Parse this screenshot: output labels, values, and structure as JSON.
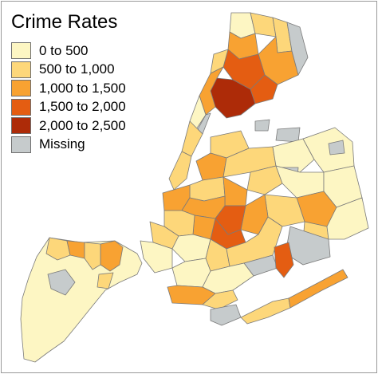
{
  "legend": {
    "title": "Crime Rates",
    "items": [
      {
        "label": "0 to 500",
        "color": "#fdf6c3"
      },
      {
        "label": "500 to 1,000",
        "color": "#fdd77a"
      },
      {
        "label": "1,000 to 1,500",
        "color": "#f8a232"
      },
      {
        "label": "1,500 to 2,000",
        "color": "#e45d12"
      },
      {
        "label": "2,000 to 2,500",
        "color": "#ad2b08"
      },
      {
        "label": "Missing",
        "color": "#c6cbcc"
      }
    ]
  },
  "map": {
    "boundary_color": "#7a7a7a",
    "regions": [
      {
        "name": "staten-island",
        "class_index": 0
      },
      {
        "name": "staten-island-north-shore",
        "class_index": 1
      },
      {
        "name": "staten-island-mariners-harbor",
        "class_index": 2
      },
      {
        "name": "staten-island-st-george",
        "class_index": 2
      },
      {
        "name": "staten-island-port-richmond",
        "class_index": 1
      },
      {
        "name": "manhattan-lower",
        "class_index": 1
      },
      {
        "name": "manhattan-midtown",
        "class_index": 1
      },
      {
        "name": "manhattan-upper-west",
        "class_index": 0
      },
      {
        "name": "manhattan-harlem",
        "class_index": 2
      },
      {
        "name": "manhattan-inwood",
        "class_index": 1
      },
      {
        "name": "bronx-south",
        "class_index": 4
      },
      {
        "name": "bronx-central",
        "class_index": 3
      },
      {
        "name": "bronx-morrisania",
        "class_index": 3
      },
      {
        "name": "bronx-east",
        "class_index": 2
      },
      {
        "name": "bronx-west",
        "class_index": 2
      },
      {
        "name": "bronx-north",
        "class_index": 1
      },
      {
        "name": "bronx-northeast",
        "class_index": 1
      },
      {
        "name": "bronx-pelham-bay",
        "class_index": 5
      },
      {
        "name": "bronx-riverdale",
        "class_index": 0
      },
      {
        "name": "queens-astoria",
        "class_index": 1
      },
      {
        "name": "queens-long-island-city",
        "class_index": 2
      },
      {
        "name": "queens-flushing",
        "class_index": 0
      },
      {
        "name": "queens-bayside",
        "class_index": 0
      },
      {
        "name": "queens-jackson-heights",
        "class_index": 1
      },
      {
        "name": "queens-elmhurst",
        "class_index": 1
      },
      {
        "name": "queens-forest-hills",
        "class_index": 0
      },
      {
        "name": "queens-jamaica",
        "class_index": 2
      },
      {
        "name": "queens-south-jamaica",
        "class_index": 1
      },
      {
        "name": "queens-southeast",
        "class_index": 0
      },
      {
        "name": "queens-east",
        "class_index": 0
      },
      {
        "name": "queens-ozone-park",
        "class_index": 1
      },
      {
        "name": "queens-rockaway-west",
        "class_index": 1
      },
      {
        "name": "queens-rockaway-east",
        "class_index": 2
      },
      {
        "name": "queens-broad-channel",
        "class_index": 3
      },
      {
        "name": "brooklyn-williamsburg",
        "class_index": 1
      },
      {
        "name": "brooklyn-bed-stuy",
        "class_index": 2
      },
      {
        "name": "brooklyn-bushwick",
        "class_index": 2
      },
      {
        "name": "brooklyn-brownsville",
        "class_index": 3
      },
      {
        "name": "brooklyn-east-flatbush",
        "class_index": 3
      },
      {
        "name": "brooklyn-crown-heights",
        "class_index": 2
      },
      {
        "name": "brooklyn-downtown",
        "class_index": 2
      },
      {
        "name": "brooklyn-park-slope",
        "class_index": 1
      },
      {
        "name": "brooklyn-sunset-park",
        "class_index": 1
      },
      {
        "name": "brooklyn-bay-ridge",
        "class_index": 0
      },
      {
        "name": "brooklyn-borough-park",
        "class_index": 0
      },
      {
        "name": "brooklyn-flatbush",
        "class_index": 1
      },
      {
        "name": "brooklyn-bensonhurst",
        "class_index": 0
      },
      {
        "name": "brooklyn-sheepshead",
        "class_index": 0
      },
      {
        "name": "brooklyn-canarsie",
        "class_index": 1
      },
      {
        "name": "brooklyn-east-new-york",
        "class_index": 2
      },
      {
        "name": "brooklyn-coney-island",
        "class_index": 2
      },
      {
        "name": "brooklyn-brighton",
        "class_index": 1
      },
      {
        "name": "brooklyn-floyd-bennett",
        "class_index": 5
      },
      {
        "name": "queens-jfk-airport",
        "class_index": 5
      },
      {
        "name": "queens-laguardia",
        "class_index": 5
      },
      {
        "name": "queens-flushing-meadows",
        "class_index": 5
      },
      {
        "name": "manhattan-central-park",
        "class_index": 5
      },
      {
        "name": "brooklyn-prospect-park",
        "class_index": 5
      },
      {
        "name": "queens-rikers",
        "class_index": 5
      },
      {
        "name": "queens-alley-pond",
        "class_index": 5
      },
      {
        "name": "brooklyn-coney-tip",
        "class_index": 5
      },
      {
        "name": "staten-island-fresh-kills",
        "class_index": 5
      }
    ]
  }
}
